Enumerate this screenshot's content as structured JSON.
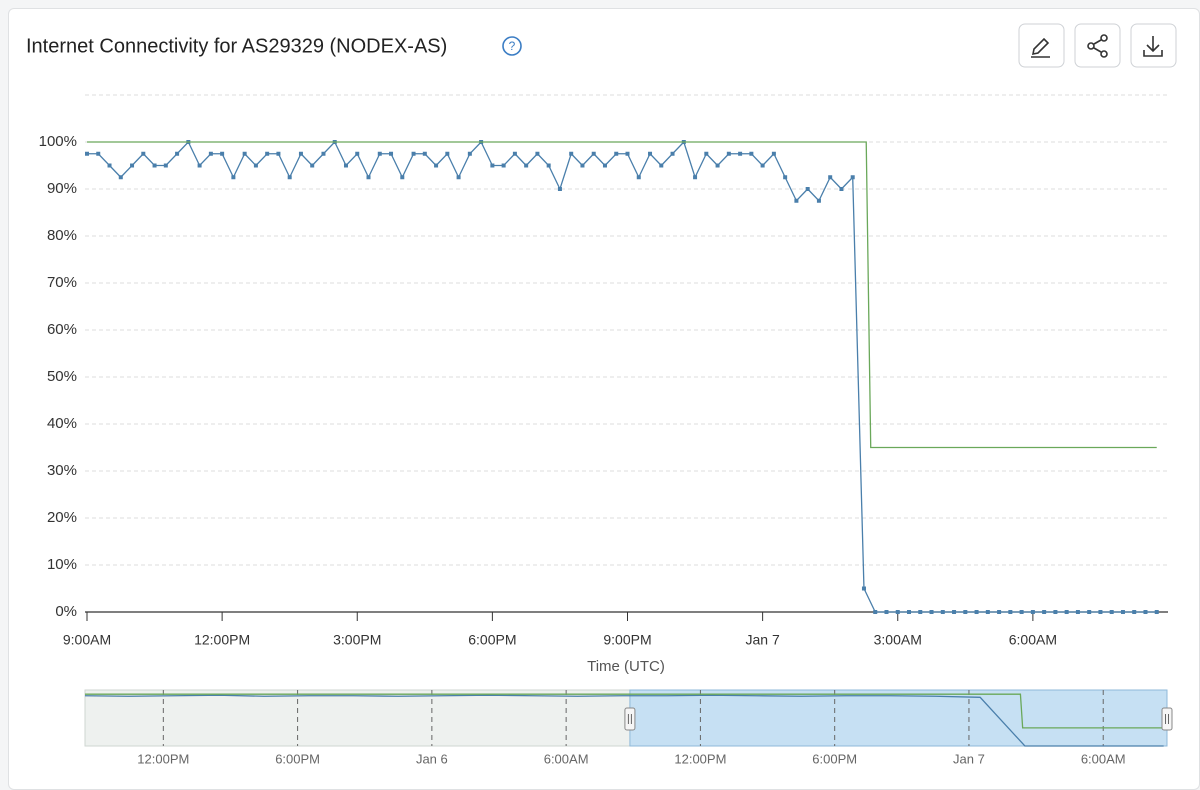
{
  "chart_data": {
    "type": "line",
    "title": "Internet Connectivity for AS29329 (NODEX-AS)",
    "xlabel": "Time (UTC)",
    "x": [
      0,
      0.25,
      0.5,
      0.75,
      1,
      1.25,
      1.5,
      1.75,
      2,
      2.25,
      2.5,
      2.75,
      3,
      3.25,
      3.5,
      3.75,
      4,
      4.25,
      4.5,
      4.75,
      5,
      5.25,
      5.5,
      5.75,
      6,
      6.25,
      6.5,
      6.75,
      7,
      7.25,
      7.5,
      7.75,
      8,
      8.25,
      8.5,
      8.75,
      9,
      9.25,
      9.5,
      9.75,
      10,
      10.25,
      10.5,
      10.75,
      11,
      11.25,
      11.5,
      11.75,
      12,
      12.25,
      12.5,
      12.75,
      13,
      13.25,
      13.5,
      13.75,
      14,
      14.25,
      14.5,
      14.75,
      15,
      15.25,
      15.5,
      15.75,
      16,
      16.25,
      16.5,
      16.75,
      17,
      17.25,
      17.5,
      17.75,
      18,
      18.25,
      18.5,
      18.75,
      19,
      19.25,
      19.5,
      19.75,
      20,
      20.25,
      20.5,
      20.75,
      21,
      21.25,
      21.5,
      21.75,
      22,
      22.25,
      22.5,
      22.75,
      23,
      23.25,
      23.5,
      23.75
    ],
    "series": [
      {
        "color": "#4a7fab",
        "values": [
          97.5,
          97.5,
          95,
          92.5,
          95,
          97.5,
          95,
          95,
          97.5,
          100,
          95,
          97.5,
          97.5,
          92.5,
          97.5,
          95,
          97.5,
          97.5,
          92.5,
          97.5,
          95,
          97.5,
          100,
          95,
          97.5,
          92.5,
          97.5,
          97.5,
          92.5,
          97.5,
          97.5,
          95,
          97.5,
          92.5,
          97.5,
          100,
          95,
          95,
          97.5,
          95,
          97.5,
          95,
          90,
          97.5,
          95,
          97.5,
          95,
          97.5,
          97.5,
          92.5,
          97.5,
          95,
          97.5,
          100,
          92.5,
          97.5,
          95,
          97.5,
          97.5,
          97.5,
          95,
          97.5,
          92.5,
          87.5,
          90,
          87.5,
          92.5,
          90,
          92.5,
          5,
          0,
          0,
          0,
          0,
          0,
          0,
          0,
          0,
          0,
          0,
          0,
          0,
          0,
          0,
          0,
          0,
          0,
          0,
          0,
          0,
          0,
          0,
          0,
          0,
          0,
          0
        ]
      },
      {
        "color": "#6aa85a",
        "x": [
          0,
          17.3,
          17.4,
          23.75
        ],
        "values": [
          100,
          100,
          35,
          35
        ]
      }
    ],
    "xlim": [
      0,
      24
    ],
    "xticks": [
      {
        "value": 0,
        "label": "9:00AM"
      },
      {
        "value": 3,
        "label": "12:00PM"
      },
      {
        "value": 6,
        "label": "3:00PM"
      },
      {
        "value": 9,
        "label": "6:00PM"
      },
      {
        "value": 12,
        "label": "9:00PM"
      },
      {
        "value": 15,
        "label": "Jan 7"
      },
      {
        "value": 18,
        "label": "3:00AM"
      },
      {
        "value": 21,
        "label": "6:00AM"
      }
    ],
    "ylim": [
      0,
      110
    ],
    "yticks": [
      {
        "value": 0,
        "label": "0%"
      },
      {
        "value": 10,
        "label": "10%"
      },
      {
        "value": 20,
        "label": "20%"
      },
      {
        "value": 30,
        "label": "30%"
      },
      {
        "value": 40,
        "label": "40%"
      },
      {
        "value": 50,
        "label": "50%"
      },
      {
        "value": 60,
        "label": "60%"
      },
      {
        "value": 70,
        "label": "70%"
      },
      {
        "value": 80,
        "label": "80%"
      },
      {
        "value": 90,
        "label": "90%"
      },
      {
        "value": 100,
        "label": "100%"
      }
    ],
    "grid": true,
    "navigator": {
      "xlim": [
        -3.5,
        44.85
      ],
      "ylim": [
        0,
        110
      ],
      "selection": [
        20.85,
        44.85
      ],
      "xticks": [
        {
          "value": 0,
          "label": "12:00PM"
        },
        {
          "value": 6,
          "label": "6:00PM"
        },
        {
          "value": 12,
          "label": "Jan 6"
        },
        {
          "value": 18,
          "label": "6:00AM"
        },
        {
          "value": 24,
          "label": "12:00PM"
        },
        {
          "value": 30,
          "label": "6:00PM"
        },
        {
          "value": 36,
          "label": "Jan 7"
        },
        {
          "value": 42,
          "label": "6:00AM"
        }
      ],
      "series": [
        {
          "color": "#4a7fab",
          "x": [
            -3.5,
            -1.5,
            0.5,
            2.5,
            4.5,
            6.5,
            8.5,
            10.5,
            12.5,
            14.5,
            16.5,
            18.5,
            20.5,
            22.5,
            24.5,
            26.5,
            28.5,
            30.5,
            32.5,
            34.5,
            36.5,
            38.5,
            44.7
          ],
          "values": [
            97,
            96,
            97,
            98,
            96,
            97,
            97,
            96,
            97,
            98,
            97,
            96,
            97,
            97,
            98,
            97,
            96,
            97,
            97,
            96,
            94,
            0,
            0
          ]
        },
        {
          "color": "#6aa85a",
          "x": [
            -3.5,
            38.3,
            38.4,
            44.7
          ],
          "values": [
            100,
            100,
            35,
            35
          ]
        }
      ]
    }
  }
}
